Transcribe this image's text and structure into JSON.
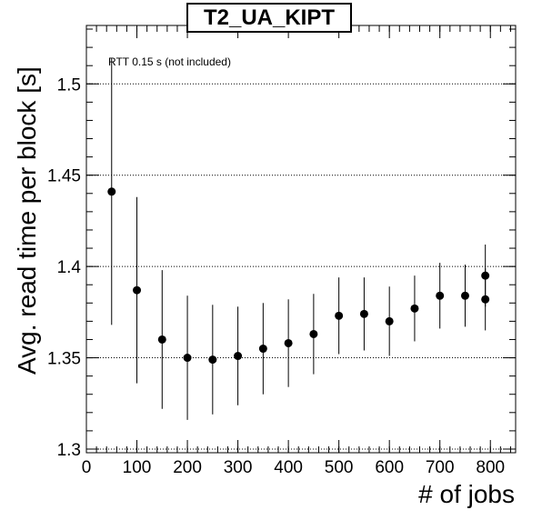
{
  "chart_data": {
    "type": "scatter",
    "title": "T2_UA_KIPT",
    "xlabel": "# of jobs",
    "ylabel": "Avg. read time per block [s]",
    "annotation": "RTT 0.15 s (not included)",
    "xlim": [
      0,
      850
    ],
    "ylim": [
      1.298,
      1.532
    ],
    "x_ticks": [
      0,
      100,
      200,
      300,
      400,
      500,
      600,
      700,
      800
    ],
    "y_ticks": [
      1.3,
      1.35,
      1.4,
      1.45,
      1.5
    ],
    "x_tick_labels": [
      "0",
      "100",
      "200",
      "300",
      "400",
      "500",
      "600",
      "700",
      "800"
    ],
    "y_tick_labels": [
      "1.3",
      "1.35",
      "1.4",
      "1.45",
      "1.5"
    ],
    "grid": "horizontal dotted",
    "series": [
      {
        "marker_color": "#000000",
        "points": [
          {
            "x": 50,
            "y": 1.441,
            "err": 0.073
          },
          {
            "x": 100,
            "y": 1.387,
            "err": 0.051
          },
          {
            "x": 150,
            "y": 1.36,
            "err": 0.038
          },
          {
            "x": 200,
            "y": 1.35,
            "err": 0.034
          },
          {
            "x": 250,
            "y": 1.349,
            "err": 0.03
          },
          {
            "x": 300,
            "y": 1.351,
            "err": 0.027
          },
          {
            "x": 350,
            "y": 1.355,
            "err": 0.025
          },
          {
            "x": 400,
            "y": 1.358,
            "err": 0.024
          },
          {
            "x": 450,
            "y": 1.363,
            "err": 0.022
          },
          {
            "x": 500,
            "y": 1.373,
            "err": 0.021
          },
          {
            "x": 550,
            "y": 1.374,
            "err": 0.02
          },
          {
            "x": 600,
            "y": 1.37,
            "err": 0.019
          },
          {
            "x": 650,
            "y": 1.377,
            "err": 0.018
          },
          {
            "x": 700,
            "y": 1.384,
            "err": 0.018
          },
          {
            "x": 750,
            "y": 1.384,
            "err": 0.017
          },
          {
            "x": 790,
            "y": 1.395,
            "err": 0.017
          },
          {
            "x": 790,
            "y": 1.382,
            "err": 0.017
          }
        ]
      }
    ]
  }
}
